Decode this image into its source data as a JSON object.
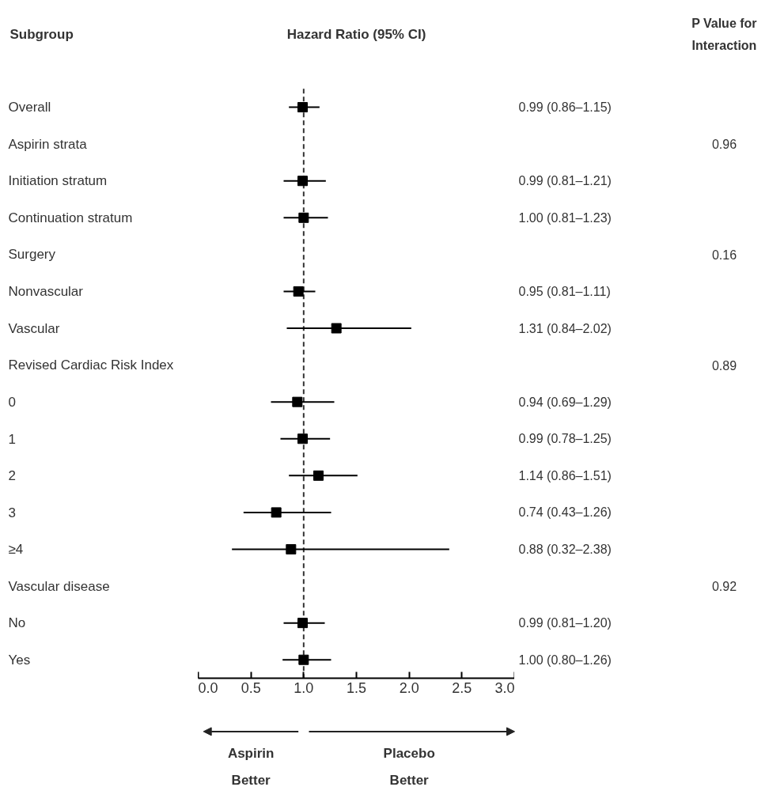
{
  "chart_data": {
    "type": "scatter",
    "orientation": "horizontal",
    "ylabel": "Subgroup",
    "xlabel": "Hazard Ratio (95% CI)",
    "categories": [
      "Overall",
      "Aspirin strata",
      "Initiation stratum",
      "Continuation stratum",
      "Surgery",
      "Nonvascular",
      "Vascular",
      "Revised Cardiac Risk Index",
      "0",
      "1",
      "2",
      "3",
      "≥4",
      "Vascular disease",
      "No",
      "Yes"
    ],
    "values": [
      0.99,
      null,
      0.99,
      1.0,
      null,
      0.95,
      1.31,
      null,
      0.94,
      0.99,
      1.14,
      0.74,
      0.88,
      null,
      0.99,
      1.0
    ],
    "errors": [
      [
        0.86,
        1.15
      ],
      null,
      [
        0.81,
        1.21
      ],
      [
        0.81,
        1.23
      ],
      null,
      [
        0.81,
        1.11
      ],
      [
        0.84,
        2.02
      ],
      null,
      [
        0.69,
        1.29
      ],
      [
        0.78,
        1.25
      ],
      [
        0.86,
        1.51
      ],
      [
        0.43,
        1.26
      ],
      [
        0.32,
        2.38
      ],
      null,
      [
        0.81,
        1.2
      ],
      [
        0.8,
        1.26
      ]
    ],
    "value_labels": [
      "0.99 (0.86–1.15)",
      null,
      "0.99 (0.81–1.21)",
      "1.00 (0.81–1.23)",
      null,
      "0.95 (0.81–1.11)",
      "1.31 (0.84–2.02)",
      null,
      "0.94 (0.69–1.29)",
      "0.99 (0.78–1.25)",
      "1.14 (0.86–1.51)",
      "0.74 (0.43–1.26)",
      "0.88 (0.32–2.38)",
      null,
      "0.99 (0.81–1.20)",
      "1.00 (0.80–1.26)"
    ],
    "color": "#000000",
    "marker": "square",
    "xlim": [
      0,
      3
    ],
    "xticks": [
      {
        "value": 0,
        "label": "0.0"
      },
      {
        "value": 0.5,
        "label": "0.5"
      },
      {
        "value": 1,
        "label": "1.0"
      },
      {
        "value": 1.5,
        "label": "1.5"
      },
      {
        "value": 2,
        "label": "2.0"
      },
      {
        "value": 2.5,
        "label": "2.5"
      },
      {
        "value": 3,
        "label": "3.0"
      }
    ],
    "ref_lines": [
      {
        "axis": "x",
        "value": 1,
        "line_style": "dashed"
      }
    ],
    "grid": false,
    "legend": false,
    "annotations": [
      "P Value for Interaction",
      "0.96",
      "0.16",
      "0.89",
      "0.92",
      "Aspirin Better",
      "Placebo Better"
    ]
  }
}
